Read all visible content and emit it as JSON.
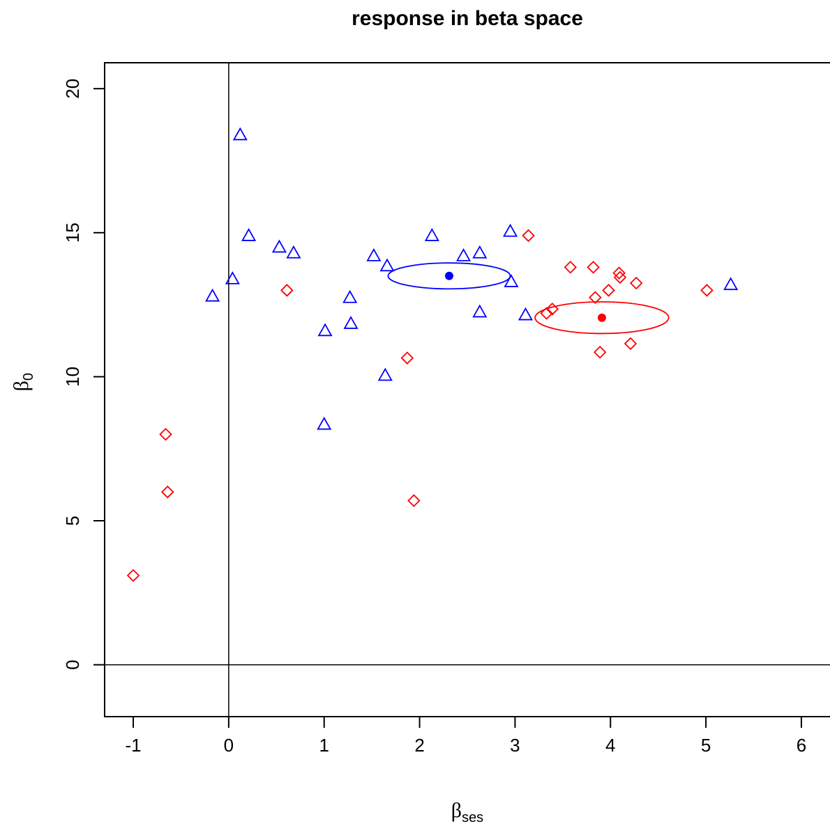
{
  "chart_data": {
    "type": "scatter",
    "title": "response in beta space",
    "xlabel": {
      "main": "β",
      "sub": "ses"
    },
    "ylabel": {
      "main": "β",
      "sub": "0"
    },
    "xlim": [
      -1.3,
      6.3
    ],
    "ylim": [
      -1.8,
      20.9
    ],
    "xticks": [
      -1,
      0,
      1,
      2,
      3,
      4,
      5,
      6
    ],
    "yticks": [
      0,
      5,
      10,
      15,
      20
    ],
    "reference_lines": {
      "vertical_x": 0,
      "horizontal_y": 0
    },
    "series": [
      {
        "marker": "triangle",
        "color": "#0000ff",
        "points": [
          [
            0.12,
            18.4
          ],
          [
            0.21,
            14.9
          ],
          [
            0.04,
            13.4
          ],
          [
            -0.17,
            12.8
          ],
          [
            0.53,
            14.5
          ],
          [
            0.68,
            14.3
          ],
          [
            1.01,
            11.6
          ],
          [
            1.0,
            8.35
          ],
          [
            1.27,
            12.75
          ],
          [
            1.28,
            11.85
          ],
          [
            1.52,
            14.2
          ],
          [
            1.66,
            13.85
          ],
          [
            1.64,
            10.05
          ],
          [
            2.13,
            14.9
          ],
          [
            2.46,
            14.2
          ],
          [
            2.63,
            14.3
          ],
          [
            2.63,
            12.25
          ],
          [
            2.95,
            15.05
          ],
          [
            2.96,
            13.3
          ],
          [
            3.11,
            12.15
          ],
          [
            5.26,
            13.2
          ]
        ],
        "mean": [
          2.31,
          13.5
        ],
        "ellipse": {
          "center": [
            2.31,
            13.5
          ],
          "half_width": 0.64,
          "half_height": 0.45
        }
      },
      {
        "marker": "diamond",
        "color": "#ff0000",
        "points": [
          [
            -1.0,
            3.1
          ],
          [
            -0.66,
            8.0
          ],
          [
            -0.64,
            6.0
          ],
          [
            0.61,
            13.0
          ],
          [
            1.87,
            10.65
          ],
          [
            1.94,
            5.7
          ],
          [
            3.14,
            14.9
          ],
          [
            3.33,
            12.2
          ],
          [
            3.39,
            12.35
          ],
          [
            3.58,
            13.8
          ],
          [
            3.82,
            13.8
          ],
          [
            3.84,
            12.75
          ],
          [
            3.89,
            10.85
          ],
          [
            3.98,
            13.0
          ],
          [
            4.09,
            13.6
          ],
          [
            4.1,
            13.45
          ],
          [
            4.21,
            11.15
          ],
          [
            4.27,
            13.25
          ],
          [
            5.01,
            13.0
          ]
        ],
        "mean": [
          3.91,
          12.05
        ],
        "ellipse": {
          "center": [
            3.91,
            12.05
          ],
          "half_width": 0.7,
          "half_height": 0.55
        }
      }
    ]
  }
}
